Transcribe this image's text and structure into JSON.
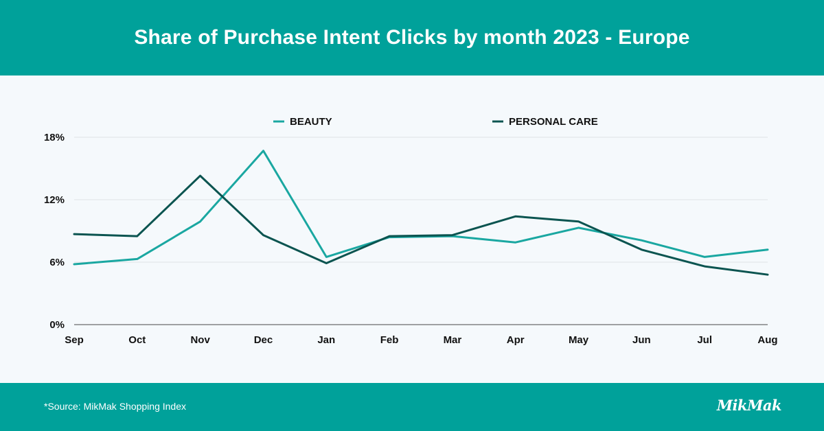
{
  "header": {
    "title": "Share of Purchase Intent Clicks by month 2023 - Europe"
  },
  "footer": {
    "source": "*Source: MikMak Shopping Index",
    "logo": "MikMak"
  },
  "colors": {
    "brand": "#00a19a",
    "beauty": "#1aa7a1",
    "personal_care": "#0b5450"
  },
  "chart_data": {
    "type": "line",
    "title": "Share of Purchase Intent Clicks by month 2023 - Europe",
    "xlabel": "",
    "ylabel": "",
    "categories": [
      "Sep",
      "Oct",
      "Nov",
      "Dec",
      "Jan",
      "Feb",
      "Mar",
      "Apr",
      "May",
      "Jun",
      "Jul",
      "Aug"
    ],
    "yticks": [
      0,
      6,
      12,
      18
    ],
    "ytick_labels": [
      "0%",
      "6%",
      "12%",
      "18%"
    ],
    "ylim": [
      0,
      18
    ],
    "grid": true,
    "legend_position": "top-center",
    "series": [
      {
        "name": "BEAUTY",
        "color": "#1aa7a1",
        "values": [
          5.8,
          6.3,
          9.9,
          16.7,
          6.5,
          8.4,
          8.5,
          7.9,
          9.3,
          8.1,
          6.5,
          7.2
        ]
      },
      {
        "name": "PERSONAL CARE",
        "color": "#0b5450",
        "values": [
          8.7,
          8.5,
          14.3,
          8.6,
          5.9,
          8.5,
          8.6,
          10.4,
          9.9,
          7.2,
          5.6,
          4.8
        ]
      }
    ]
  }
}
